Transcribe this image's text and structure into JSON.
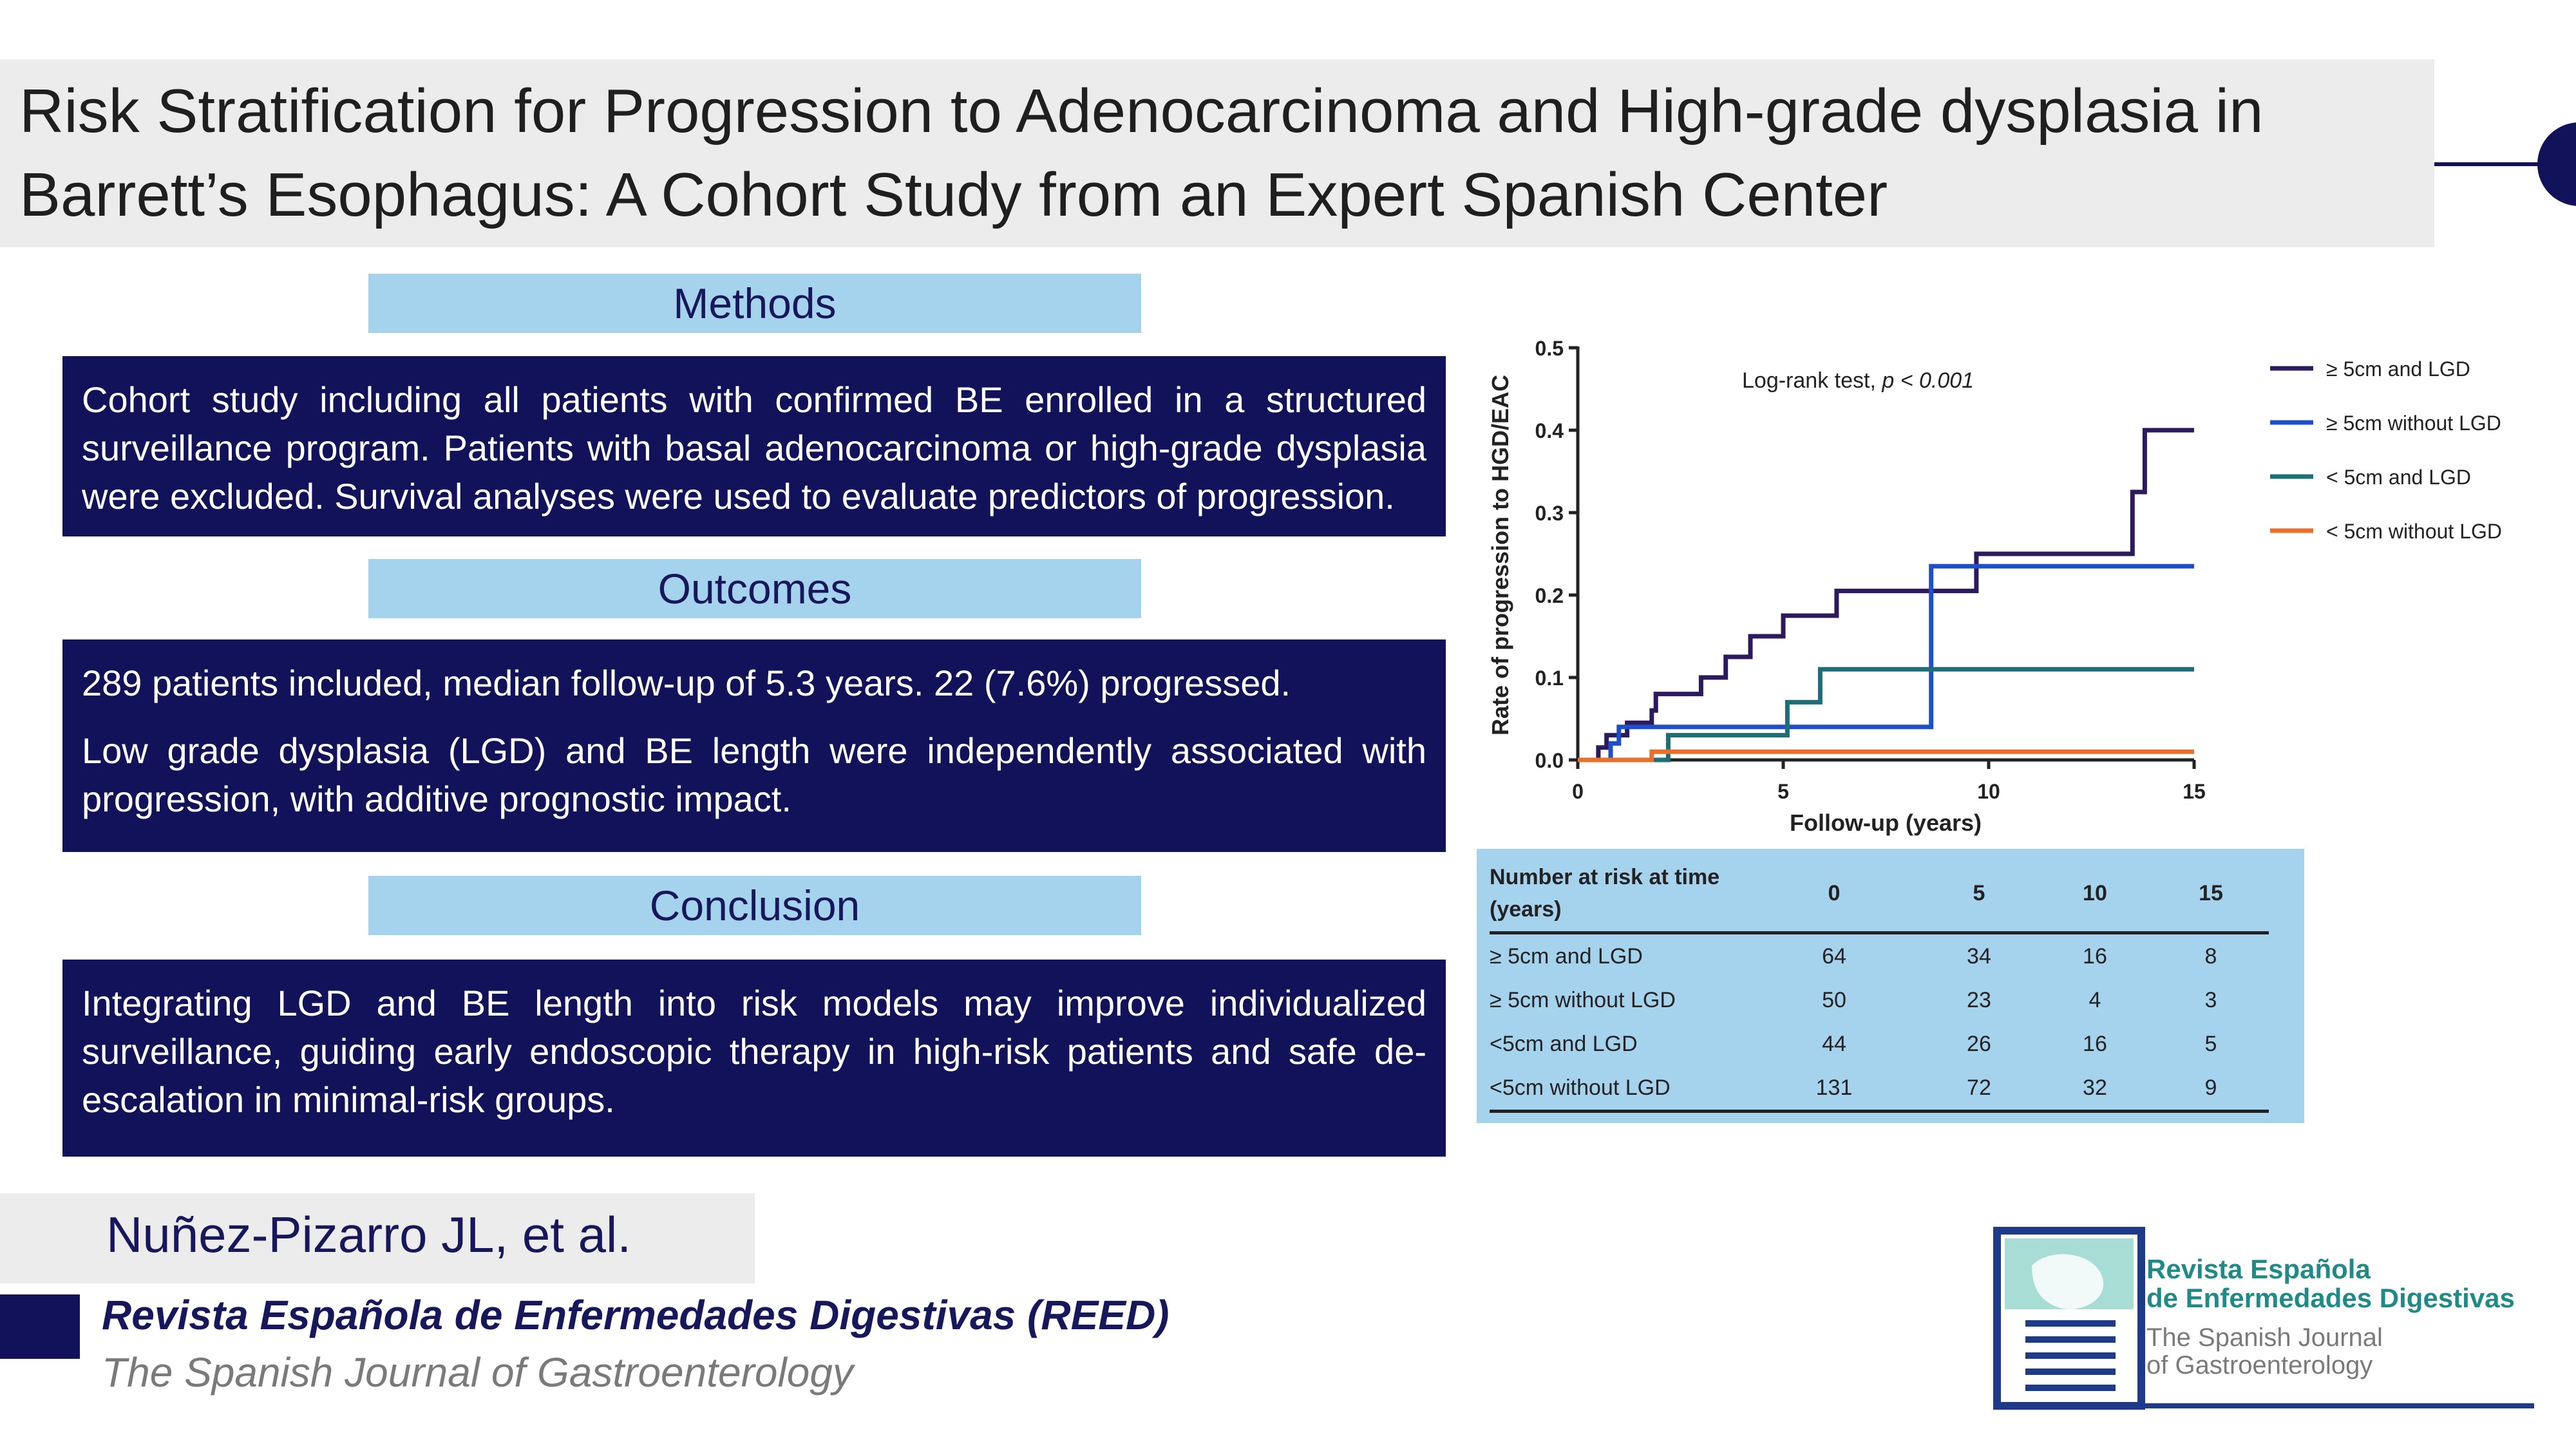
{
  "title": "Risk Stratification for Progression to Adenocarcinoma and High-grade dysplasia in Barrett’s Esophagus: A Cohort Study from an Expert Spanish Center",
  "methods": {
    "heading": "Methods",
    "text": "Cohort study including all patients with confirmed BE enrolled in a structured surveillance program. Patients with basal adenocarcinoma or high-grade dysplasia were excluded. Survival analyses were used to evaluate predictors of progression."
  },
  "outcomes": {
    "heading": "Outcomes",
    "text1": "289 patients included, median follow-up of 5.3 years. 22 (7.6%) progressed.",
    "text2": "Low grade dysplasia (LGD) and BE length were independently associated with progression, with additive prognostic impact."
  },
  "conclusion": {
    "heading": "Conclusion",
    "text": "Integrating LGD and BE length into risk models may improve individualized surveillance, guiding early endoscopic therapy in high-risk patients and safe de-escalation in minimal-risk groups."
  },
  "authors": "Nuñez-Pizarro JL, et al.",
  "journal": {
    "name": "Revista Española de Enfermedades Digestivas (REED)",
    "subtitle": "The Spanish Journal of Gastroenterology"
  },
  "logo": {
    "line1": "Revista Española",
    "line2": "de Enfermedades Digestivas",
    "line3": "The Spanish Journal",
    "line4": "of Gastroenterology"
  },
  "colors": {
    "navy": "#12125a",
    "light_blue": "#a5d3ee",
    "title_bg": "#ececec"
  },
  "chart_data": {
    "type": "line",
    "title": "",
    "annotation_prefix": "Log-rank test, ",
    "annotation_p": "p < 0.001",
    "xlabel": "Follow-up (years)",
    "ylabel": "Rate of progression to HGD/EAC",
    "xlim": [
      0,
      15
    ],
    "ylim": [
      0,
      0.5
    ],
    "xticks": [
      0,
      5,
      10,
      15
    ],
    "yticks": [
      0.0,
      0.1,
      0.2,
      0.3,
      0.4,
      0.5
    ],
    "ytick_labels": [
      "0.0",
      "0.1",
      "0.2",
      "0.3",
      "0.4",
      "0.5"
    ],
    "legend_position": "right",
    "series": [
      {
        "name": "≥ 5cm and LGD",
        "color": "#2d1a5e",
        "steps": [
          [
            0,
            0
          ],
          [
            0.5,
            0
          ],
          [
            0.5,
            0.015
          ],
          [
            0.7,
            0.015
          ],
          [
            0.7,
            0.03
          ],
          [
            1.2,
            0.03
          ],
          [
            1.2,
            0.045
          ],
          [
            1.8,
            0.045
          ],
          [
            1.8,
            0.06
          ],
          [
            1.9,
            0.06
          ],
          [
            1.9,
            0.08
          ],
          [
            3.0,
            0.08
          ],
          [
            3.0,
            0.1
          ],
          [
            3.6,
            0.1
          ],
          [
            3.6,
            0.125
          ],
          [
            4.2,
            0.125
          ],
          [
            4.2,
            0.15
          ],
          [
            5.0,
            0.15
          ],
          [
            5.0,
            0.175
          ],
          [
            6.3,
            0.175
          ],
          [
            6.3,
            0.205
          ],
          [
            9.7,
            0.205
          ],
          [
            9.7,
            0.25
          ],
          [
            13.5,
            0.25
          ],
          [
            13.5,
            0.325
          ],
          [
            13.8,
            0.325
          ],
          [
            13.8,
            0.4
          ],
          [
            15,
            0.4
          ]
        ]
      },
      {
        "name": "≥ 5cm without LGD",
        "color": "#1e4fc8",
        "steps": [
          [
            0,
            0
          ],
          [
            0.8,
            0
          ],
          [
            0.8,
            0.02
          ],
          [
            1.0,
            0.02
          ],
          [
            1.0,
            0.04
          ],
          [
            8.6,
            0.04
          ],
          [
            8.6,
            0.235
          ],
          [
            15,
            0.235
          ]
        ]
      },
      {
        "name": "< 5cm and LGD",
        "color": "#1e6e78",
        "steps": [
          [
            0,
            0
          ],
          [
            2.2,
            0
          ],
          [
            2.2,
            0.03
          ],
          [
            5.1,
            0.03
          ],
          [
            5.1,
            0.07
          ],
          [
            5.9,
            0.07
          ],
          [
            5.9,
            0.11
          ],
          [
            15,
            0.11
          ]
        ]
      },
      {
        "name": "< 5cm without LGD",
        "color": "#e8702a",
        "steps": [
          [
            0,
            0
          ],
          [
            1.8,
            0
          ],
          [
            1.8,
            0.01
          ],
          [
            15,
            0.01
          ]
        ]
      }
    ],
    "risk_table": {
      "header": "Number at risk at time (years)",
      "columns": [
        "0",
        "5",
        "10",
        "15"
      ],
      "rows": [
        {
          "label": "≥ 5cm and LGD",
          "values": [
            "64",
            "34",
            "16",
            "8"
          ]
        },
        {
          "label": "≥ 5cm without LGD",
          "values": [
            "50",
            "23",
            "4",
            "3"
          ]
        },
        {
          "label": "<5cm and LGD",
          "values": [
            "44",
            "26",
            "16",
            "5"
          ]
        },
        {
          "label": "<5cm without LGD",
          "values": [
            "131",
            "72",
            "32",
            "9"
          ]
        }
      ]
    }
  }
}
